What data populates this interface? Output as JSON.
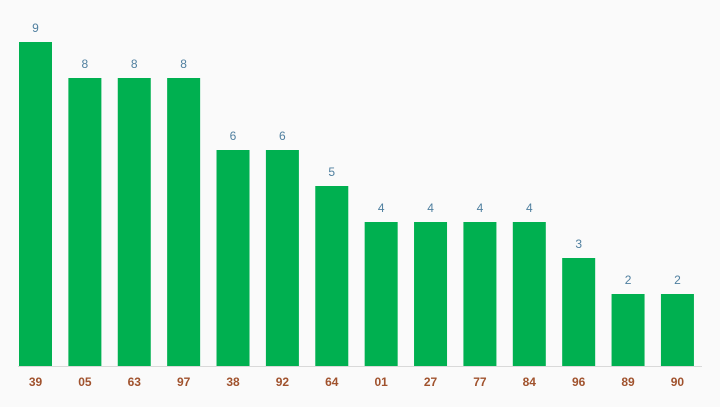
{
  "chart_data": {
    "type": "bar",
    "categories": [
      "39",
      "05",
      "63",
      "97",
      "38",
      "92",
      "64",
      "01",
      "27",
      "77",
      "84",
      "96",
      "89",
      "90"
    ],
    "values": [
      9,
      8,
      8,
      8,
      6,
      6,
      5,
      4,
      4,
      4,
      4,
      3,
      2,
      2
    ],
    "color": "#00b050"
  }
}
